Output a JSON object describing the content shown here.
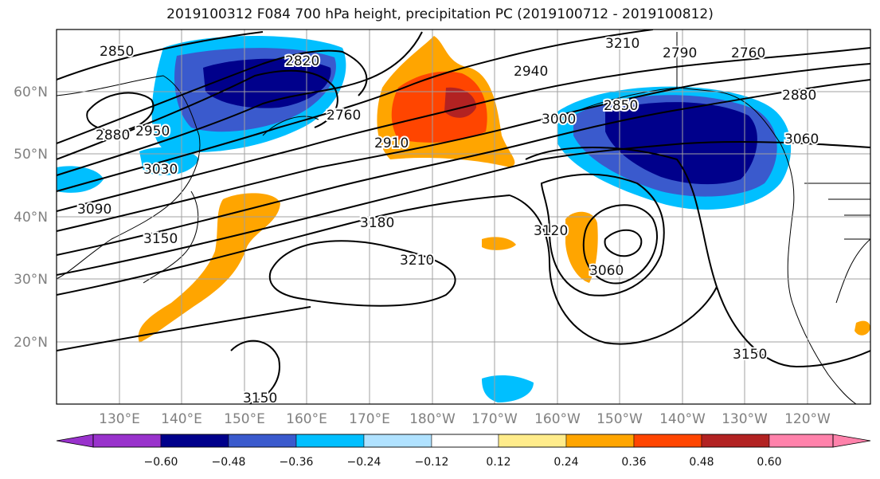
{
  "title": "2019100312 F084 700 hPa height, precipitation PC (2019100712 - 2019100812)",
  "lat_labels": [
    "60°N",
    "50°N",
    "40°N",
    "30°N",
    "20°N"
  ],
  "lon_labels": [
    "130°E",
    "140°E",
    "150°E",
    "160°E",
    "170°E",
    "180°W",
    "170°W",
    "160°W",
    "150°W",
    "140°W",
    "130°W",
    "120°W"
  ],
  "colorbar": {
    "colors": [
      "#9932cc",
      "#00008b",
      "#3a5acd",
      "#00bfff",
      "#b0e2ff",
      "#ffffff",
      "#ffec8b",
      "#ffa500",
      "#ff4500",
      "#b22222",
      "#ff82ab"
    ],
    "tick_labels": [
      "−0.60",
      "−0.48",
      "−0.36",
      "−0.24",
      "−0.12",
      "0.12",
      "0.24",
      "0.36",
      "0.48",
      "0.60"
    ]
  },
  "contour_labels": [
    "2850",
    "2820",
    "2880",
    "2950",
    "3030",
    "3090",
    "3150",
    "2910",
    "2940",
    "3000",
    "2850",
    "2880",
    "3060",
    "3180",
    "3210",
    "3120",
    "3060",
    "3150",
    "3150",
    "2760",
    "2790",
    "2760",
    "3210"
  ]
}
